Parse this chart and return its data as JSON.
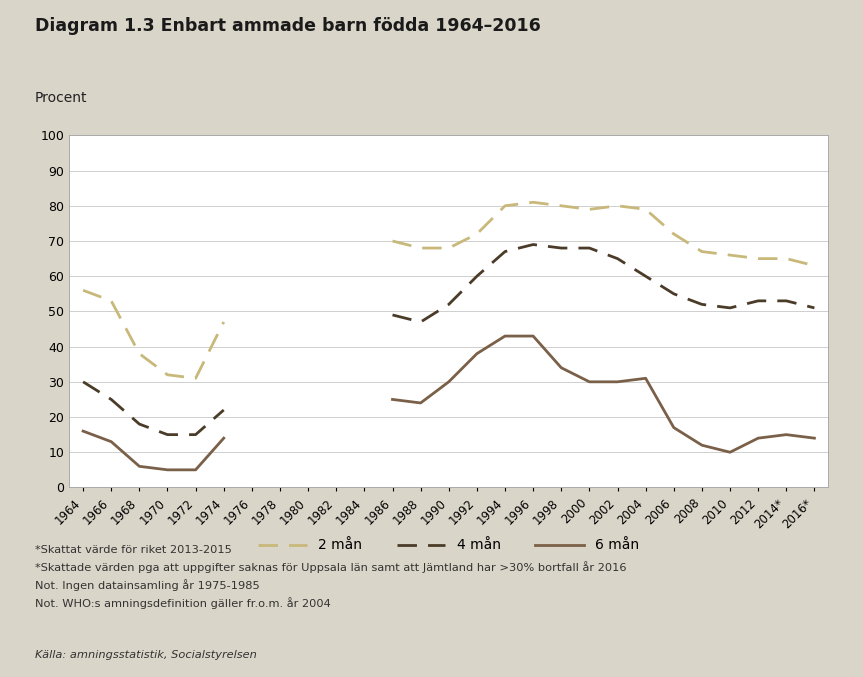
{
  "title": "Diagram 1.3 Enbart ammade barn födda 1964–2016",
  "ylabel": "Procent",
  "background_color": "#d9d5c8",
  "plot_background": "#ffffff",
  "ylim": [
    0,
    100
  ],
  "yticks": [
    0,
    10,
    20,
    30,
    40,
    50,
    60,
    70,
    80,
    90,
    100
  ],
  "xtick_labels": [
    "1964",
    "1966",
    "1968",
    "1970",
    "1972",
    "1974",
    "1976",
    "1978",
    "1980",
    "1982",
    "1984",
    "1986",
    "1988",
    "1990",
    "1992",
    "1994",
    "1996",
    "1998",
    "2000",
    "2002",
    "2004",
    "2006",
    "2008",
    "2010",
    "2012",
    "2014*",
    "2016*"
  ],
  "line_2man": {
    "label": "2 mån",
    "color": "#c8b87a",
    "linestyle": "dashed",
    "linewidth": 2.0,
    "x": [
      1964,
      1966,
      1968,
      1970,
      1972,
      1974,
      1986,
      1988,
      1990,
      1992,
      1994,
      1996,
      1998,
      2000,
      2002,
      2004,
      2006,
      2008,
      2010,
      2012,
      2014,
      2016
    ],
    "y": [
      56,
      53,
      38,
      32,
      31,
      47,
      70,
      68,
      68,
      72,
      80,
      81,
      80,
      79,
      80,
      79,
      72,
      67,
      66,
      65,
      65,
      63
    ]
  },
  "line_4man": {
    "label": "4 mån",
    "color": "#4a3c28",
    "linestyle": "dashed",
    "linewidth": 2.0,
    "x": [
      1964,
      1966,
      1968,
      1970,
      1972,
      1974,
      1986,
      1988,
      1990,
      1992,
      1994,
      1996,
      1998,
      2000,
      2002,
      2004,
      2006,
      2008,
      2010,
      2012,
      2014,
      2016
    ],
    "y": [
      30,
      25,
      18,
      15,
      15,
      22,
      49,
      47,
      52,
      60,
      67,
      69,
      68,
      68,
      65,
      60,
      55,
      52,
      51,
      53,
      53,
      51
    ]
  },
  "line_6man": {
    "label": "6 mån",
    "color": "#7a6048",
    "linestyle": "solid",
    "linewidth": 2.0,
    "x": [
      1964,
      1966,
      1968,
      1970,
      1972,
      1974,
      1986,
      1988,
      1990,
      1992,
      1994,
      1996,
      1998,
      2000,
      2002,
      2004,
      2006,
      2008,
      2010,
      2012,
      2014,
      2016
    ],
    "y": [
      16,
      13,
      6,
      5,
      5,
      14,
      25,
      24,
      30,
      38,
      43,
      43,
      34,
      30,
      30,
      31,
      17,
      12,
      10,
      14,
      15,
      14
    ]
  },
  "footnotes": [
    "*Skattat värde för riket 2013-2015",
    "*Skattade värden pga att uppgifter saknas för Uppsala län samt att Jämtland har >30% bortfall år 2016",
    "Not. Ingen datainsamling år 1975-1985",
    "Not. WHO:s amningsdefinition gäller fr.o.m. år 2004"
  ],
  "source": "Källa: amningsstatistik, Socialstyrelsen"
}
